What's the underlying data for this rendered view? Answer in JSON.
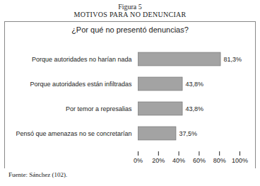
{
  "chart_data": {
    "type": "bar",
    "orientation": "horizontal",
    "caption": "Figura 5",
    "title": "MOTIVOS PARA NO DENUNCIAR",
    "subtitle": "¿Por qué no presentó denuncias?",
    "source": "Fuente:   Sánchez (102).",
    "categories": [
      "Porque autoridades no harían nada",
      "Porque autoridades están infiltradas",
      "Por temor a represalias",
      "Pensó que amenazas no se concretarían"
    ],
    "values": [
      81.3,
      43.8,
      43.8,
      37.5
    ],
    "value_labels": [
      "81,3%",
      "43,8%",
      "43,8%",
      "37,5%"
    ],
    "data_labels": true,
    "color": "#a3a3a3",
    "xlim": [
      0,
      100
    ],
    "xticks": [
      {
        "value": 0,
        "label": "0%"
      },
      {
        "value": 20,
        "label": "20%"
      },
      {
        "value": 40,
        "label": "40%"
      },
      {
        "value": 60,
        "label": "60%"
      },
      {
        "value": 80,
        "label": "80%"
      },
      {
        "value": 100,
        "label": "100%"
      }
    ],
    "grid": false
  }
}
